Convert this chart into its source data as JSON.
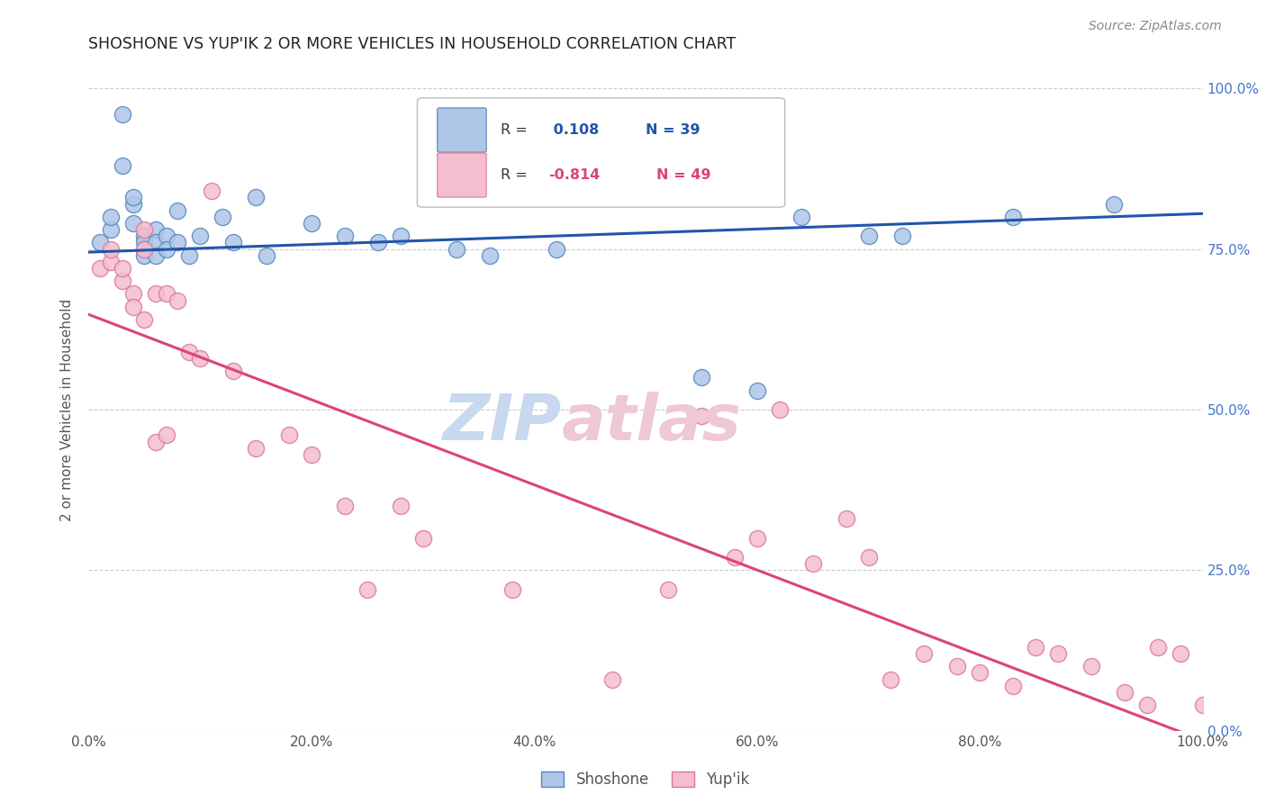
{
  "title": "SHOSHONE VS YUP'IK 2 OR MORE VEHICLES IN HOUSEHOLD CORRELATION CHART",
  "source": "Source: ZipAtlas.com",
  "ylabel": "2 or more Vehicles in Household",
  "shoshone_color": "#aec6e8",
  "shoshone_edge": "#5588bb",
  "yupik_color": "#f5bece",
  "yupik_edge": "#dd7799",
  "trend_blue": "#2255aa",
  "trend_pink": "#dd4477",
  "right_tick_color": "#4477cc",
  "grid_color": "#cccccc",
  "background": "#ffffff",
  "title_color": "#222222",
  "shoshone_x": [
    0.01,
    0.02,
    0.02,
    0.03,
    0.03,
    0.04,
    0.04,
    0.04,
    0.05,
    0.05,
    0.05,
    0.05,
    0.06,
    0.06,
    0.06,
    0.07,
    0.07,
    0.08,
    0.08,
    0.09,
    0.1,
    0.12,
    0.13,
    0.15,
    0.16,
    0.2,
    0.23,
    0.26,
    0.28,
    0.33,
    0.36,
    0.42,
    0.55,
    0.6,
    0.64,
    0.7,
    0.73,
    0.83,
    0.92
  ],
  "shoshone_y": [
    0.76,
    0.78,
    0.8,
    0.96,
    0.88,
    0.82,
    0.79,
    0.83,
    0.77,
    0.76,
    0.75,
    0.74,
    0.78,
    0.76,
    0.74,
    0.77,
    0.75,
    0.81,
    0.76,
    0.74,
    0.77,
    0.8,
    0.76,
    0.83,
    0.74,
    0.79,
    0.77,
    0.76,
    0.77,
    0.75,
    0.74,
    0.75,
    0.55,
    0.53,
    0.8,
    0.77,
    0.77,
    0.8,
    0.82
  ],
  "yupik_x": [
    0.01,
    0.02,
    0.02,
    0.03,
    0.03,
    0.04,
    0.04,
    0.05,
    0.05,
    0.05,
    0.06,
    0.06,
    0.07,
    0.07,
    0.08,
    0.09,
    0.1,
    0.11,
    0.13,
    0.15,
    0.18,
    0.2,
    0.23,
    0.25,
    0.28,
    0.3,
    0.38,
    0.47,
    0.52,
    0.55,
    0.58,
    0.6,
    0.62,
    0.65,
    0.68,
    0.7,
    0.72,
    0.75,
    0.78,
    0.8,
    0.83,
    0.85,
    0.87,
    0.9,
    0.93,
    0.95,
    0.96,
    0.98,
    1.0
  ],
  "yupik_y": [
    0.72,
    0.73,
    0.75,
    0.7,
    0.72,
    0.68,
    0.66,
    0.78,
    0.75,
    0.64,
    0.45,
    0.68,
    0.46,
    0.68,
    0.67,
    0.59,
    0.58,
    0.84,
    0.56,
    0.44,
    0.46,
    0.43,
    0.35,
    0.22,
    0.35,
    0.3,
    0.22,
    0.08,
    0.22,
    0.49,
    0.27,
    0.3,
    0.5,
    0.26,
    0.33,
    0.27,
    0.08,
    0.12,
    0.1,
    0.09,
    0.07,
    0.13,
    0.12,
    0.1,
    0.06,
    0.04,
    0.13,
    0.12,
    0.04
  ],
  "shoshone_trend": [
    0.745,
    0.805
  ],
  "yupik_trend": [
    0.648,
    -0.015
  ],
  "xlim": [
    0.0,
    1.0
  ],
  "ylim": [
    0.0,
    1.0
  ],
  "legend_r1_prefix": "R = ",
  "legend_r1_val": " 0.108",
  "legend_n1": "N = 39",
  "legend_r2_prefix": "R = ",
  "legend_r2_val": "-0.814",
  "legend_n2": "N = 49"
}
